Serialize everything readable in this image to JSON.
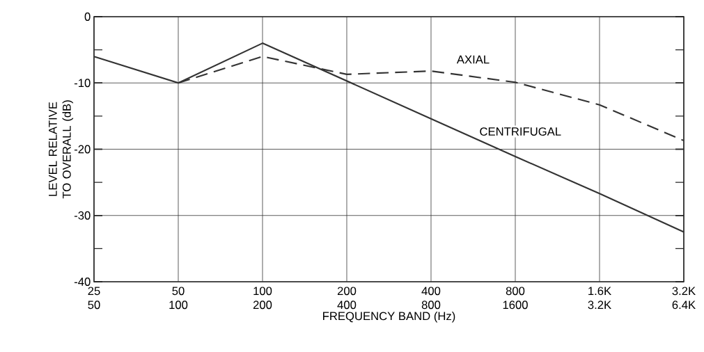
{
  "chart_data": {
    "type": "line",
    "xlabel": "FREQUENCY BAND (Hz)",
    "ylabel": "LEVEL RELATIVE TO OVERALL (dB)",
    "categories": [
      "25 50",
      "50 100",
      "100 200",
      "200 400",
      "400 800",
      "800 1600",
      "1.6K 3.2K",
      "3.2K 6.4K"
    ],
    "series": [
      {
        "name": "AXIAL",
        "color": "#333333",
        "line_style": "dashed",
        "values": [
          null,
          -10,
          -6,
          -8.7,
          -8.2,
          -9.9,
          -13.3,
          -18.7
        ]
      },
      {
        "name": "CENTRIFUGAL",
        "color": "#333333",
        "line_style": "solid",
        "values": [
          -6,
          -10,
          -4,
          -9.7,
          -15.4,
          -21.1,
          -26.7,
          -32.5
        ]
      }
    ],
    "ylim": [
      -40,
      0
    ],
    "yticks": [
      0,
      {
        "value": -5,
        "label": null
      },
      -10,
      {
        "value": -15,
        "label": null
      },
      -20,
      {
        "value": -25,
        "label": null
      },
      -30,
      {
        "value": -35,
        "label": null
      },
      -40
    ],
    "grid": true,
    "legend": false,
    "marker": "none"
  }
}
